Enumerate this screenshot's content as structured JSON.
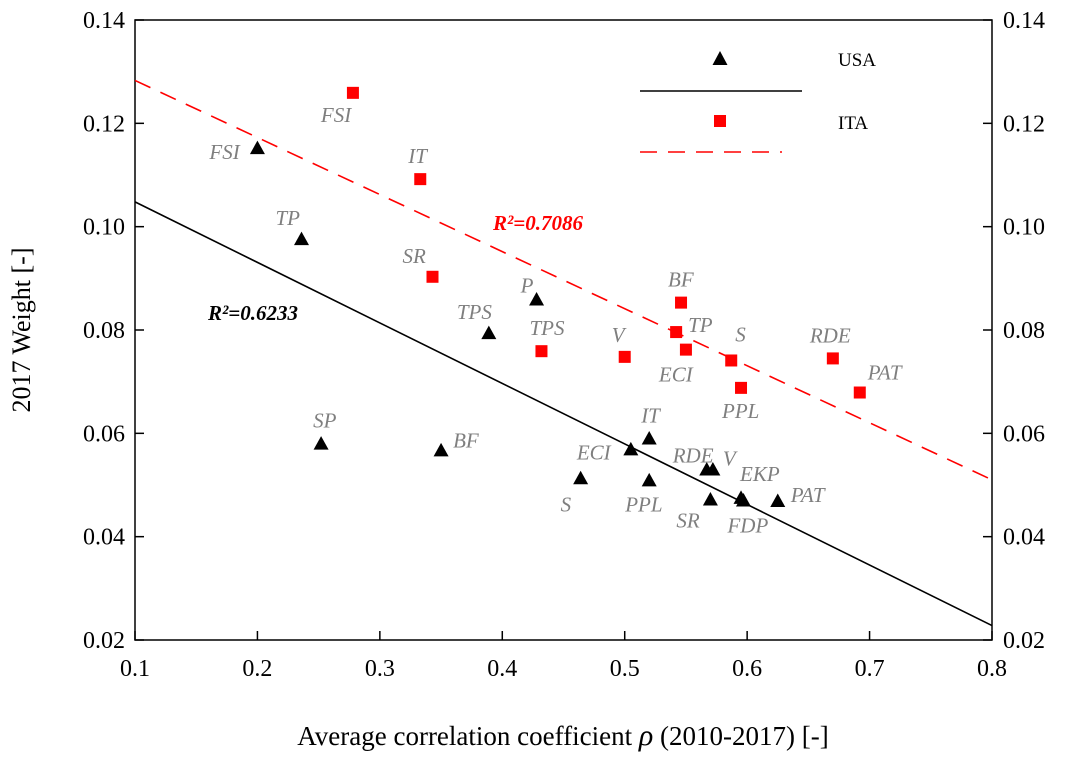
{
  "chart_data": {
    "type": "scatter",
    "xlabel_main": "Average correlation coefficient ",
    "xlabel_rho": "ρ",
    "xlabel_tail": " (2010-2017) [-]",
    "ylabel": "2017 Weight [-]",
    "xlim": [
      0.1,
      0.8
    ],
    "ylim": [
      0.02,
      0.14
    ],
    "x_ticks": [
      "0.1",
      "0.2",
      "0.3",
      "0.4",
      "0.5",
      "0.6",
      "0.7",
      "0.8"
    ],
    "y_ticks": [
      "0.02",
      "0.04",
      "0.06",
      "0.08",
      "0.10",
      "0.12",
      "0.14"
    ],
    "grid": false,
    "legend_position": "top-right",
    "series": [
      {
        "name": "USA",
        "marker": "triangle",
        "color": "#000000",
        "points": [
          {
            "label": "FSI",
            "x": 0.2,
            "y": 0.1152
          },
          {
            "label": "TP",
            "x": 0.236,
            "y": 0.0976
          },
          {
            "label": "SP",
            "x": 0.252,
            "y": 0.058
          },
          {
            "label": "BF",
            "x": 0.35,
            "y": 0.0567
          },
          {
            "label": "TPS",
            "x": 0.389,
            "y": 0.0794
          },
          {
            "label": "P",
            "x": 0.428,
            "y": 0.0859
          },
          {
            "label": "S",
            "x": 0.464,
            "y": 0.0513
          },
          {
            "label": "ECI",
            "x": 0.505,
            "y": 0.0569
          },
          {
            "label": "IT",
            "x": 0.52,
            "y": 0.059
          },
          {
            "label": "PPL",
            "x": 0.52,
            "y": 0.0509
          },
          {
            "label": "RDE",
            "x": 0.567,
            "y": 0.053
          },
          {
            "label": "V",
            "x": 0.572,
            "y": 0.053
          },
          {
            "label": "SR",
            "x": 0.57,
            "y": 0.0472
          },
          {
            "label": "EKP",
            "x": 0.595,
            "y": 0.0475
          },
          {
            "label": "FDP",
            "x": 0.597,
            "y": 0.047
          },
          {
            "label": "PAT",
            "x": 0.625,
            "y": 0.0469
          }
        ],
        "fit": {
          "r2_label": "R²=0.6233",
          "x": [
            0.1,
            0.8
          ],
          "y": [
            0.1048,
            0.0228
          ]
        }
      },
      {
        "name": "ITA",
        "marker": "square",
        "color": "#ff0000",
        "points": [
          {
            "label": "FSI",
            "x": 0.278,
            "y": 0.1259
          },
          {
            "label": "IT",
            "x": 0.333,
            "y": 0.1092
          },
          {
            "label": "SR",
            "x": 0.343,
            "y": 0.0903
          },
          {
            "label": "TPS",
            "x": 0.432,
            "y": 0.0759
          },
          {
            "label": "V",
            "x": 0.5,
            "y": 0.0748
          },
          {
            "label": "BF",
            "x": 0.546,
            "y": 0.0853
          },
          {
            "label": "TP",
            "x": 0.542,
            "y": 0.0796
          },
          {
            "label": "ECI",
            "x": 0.55,
            "y": 0.0762
          },
          {
            "label": "S",
            "x": 0.587,
            "y": 0.0741
          },
          {
            "label": "PPL",
            "x": 0.595,
            "y": 0.0688
          },
          {
            "label": "RDE",
            "x": 0.67,
            "y": 0.0745
          },
          {
            "label": "PAT",
            "x": 0.692,
            "y": 0.0679
          }
        ],
        "fit": {
          "r2_label": "R²=0.7086",
          "x": [
            0.1,
            0.8
          ],
          "y": [
            0.1283,
            0.051
          ]
        }
      }
    ]
  }
}
